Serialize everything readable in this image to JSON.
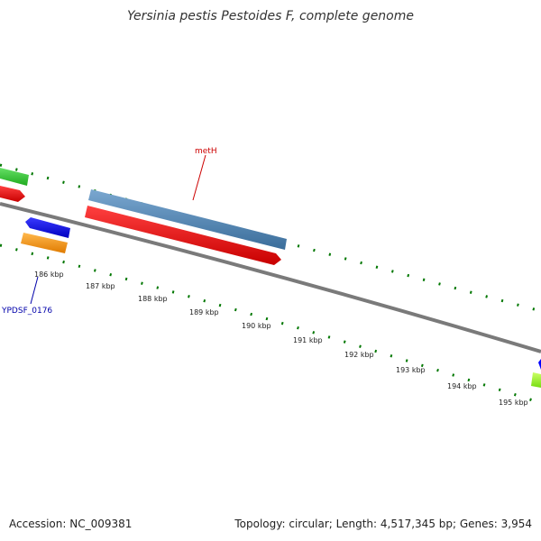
{
  "title": "Yersinia pestis Pestoides F, complete genome",
  "footer": {
    "accession": "Accession: NC_009381",
    "topology": "Topology: circular; Length: 4,517,345 bp; Genes: 3,954"
  },
  "ticks": [
    "186 kbp",
    "187 kbp",
    "188 kbp",
    "189 kbp",
    "190 kbp",
    "191 kbp",
    "192 kbp",
    "193 kbp",
    "194 kbp",
    "195 kbp"
  ],
  "genes": [
    {
      "label": "metH",
      "color": "#cc0000"
    },
    {
      "label": "YPDSF_0176",
      "color": "#0000aa"
    }
  ],
  "colors": {
    "backbone": "#808080",
    "tick_mark": "#007700",
    "red": "#ff0000",
    "steelblue": "#4a86b8",
    "blue": "#0000ff",
    "orange": "#ff9900",
    "green": "#33cc33",
    "lime": "#99ff33"
  }
}
